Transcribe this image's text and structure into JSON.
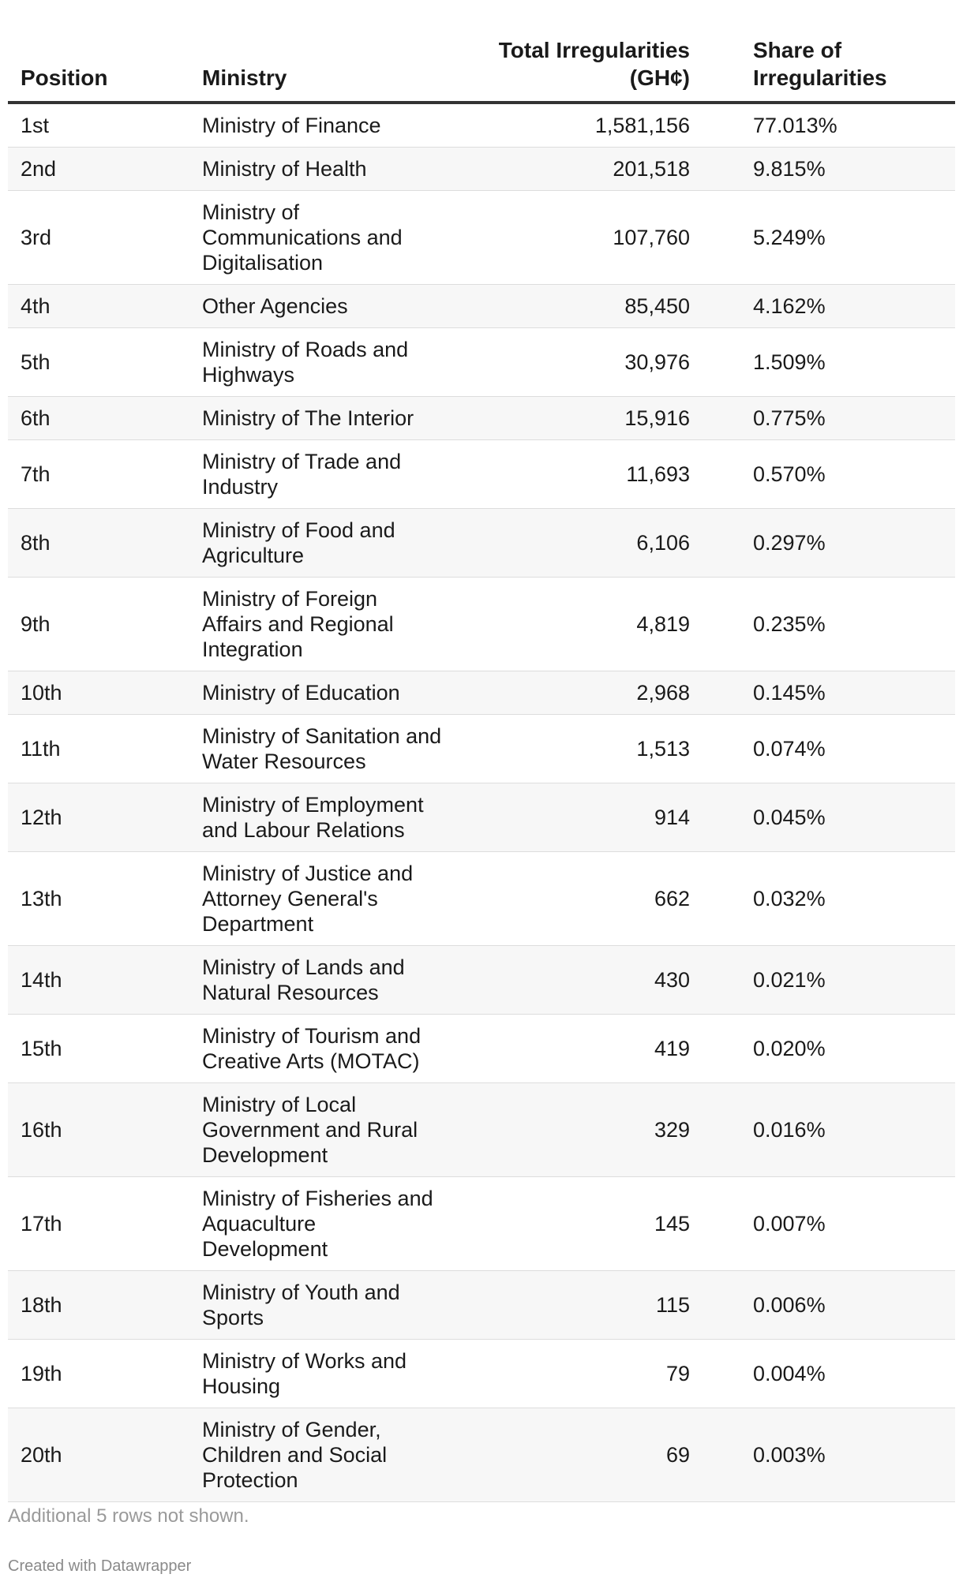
{
  "chart_data": {
    "type": "table",
    "columns": [
      "Position",
      "Ministry",
      "Total Irregularities (GH¢)",
      "Share of Irregularities"
    ],
    "rows": [
      [
        "1st",
        "Ministry of Finance",
        "1,581,156",
        "77.013%"
      ],
      [
        "2nd",
        "Ministry of Health",
        "201,518",
        "9.815%"
      ],
      [
        "3rd",
        "Ministry of Communications and Digitalisation",
        "107,760",
        "5.249%"
      ],
      [
        "4th",
        "Other Agencies",
        "85,450",
        "4.162%"
      ],
      [
        "5th",
        "Ministry of Roads and Highways",
        "30,976",
        "1.509%"
      ],
      [
        "6th",
        "Ministry of The Interior",
        "15,916",
        "0.775%"
      ],
      [
        "7th",
        "Ministry of Trade and Industry",
        "11,693",
        "0.570%"
      ],
      [
        "8th",
        "Ministry of Food and Agriculture",
        "6,106",
        "0.297%"
      ],
      [
        "9th",
        "Ministry of Foreign Affairs and Regional Integration",
        "4,819",
        "0.235%"
      ],
      [
        "10th",
        "Ministry of Education",
        "2,968",
        "0.145%"
      ],
      [
        "11th",
        "Ministry of Sanitation and Water Resources",
        "1,513",
        "0.074%"
      ],
      [
        "12th",
        "Ministry of Employment and Labour Relations",
        "914",
        "0.045%"
      ],
      [
        "13th",
        "Ministry of Justice and Attorney General's Department",
        "662",
        "0.032%"
      ],
      [
        "14th",
        "Ministry of Lands and Natural Resources",
        "430",
        "0.021%"
      ],
      [
        "15th",
        "Ministry of Tourism and Creative Arts (MOTAC)",
        "419",
        "0.020%"
      ],
      [
        "16th",
        "Ministry of Local Government and Rural Development",
        "329",
        "0.016%"
      ],
      [
        "17th",
        "Ministry of Fisheries and Aquaculture Development",
        "145",
        "0.007%"
      ],
      [
        "18th",
        "Ministry of Youth and Sports",
        "115",
        "0.006%"
      ],
      [
        "19th",
        "Ministry of Works and Housing",
        "79",
        "0.004%"
      ],
      [
        "20th",
        "Ministry of Gender, Children and Social Protection",
        "69",
        "0.003%"
      ]
    ],
    "notes": "Additional 5 rows not shown.",
    "credit": "Created with Datawrapper"
  },
  "colors": {
    "text": "#1a1a1a",
    "header_rule": "#333333",
    "row_stripe": "#f7f7f7",
    "row_divider": "#dddddd",
    "notes": "#9a9a9a"
  }
}
